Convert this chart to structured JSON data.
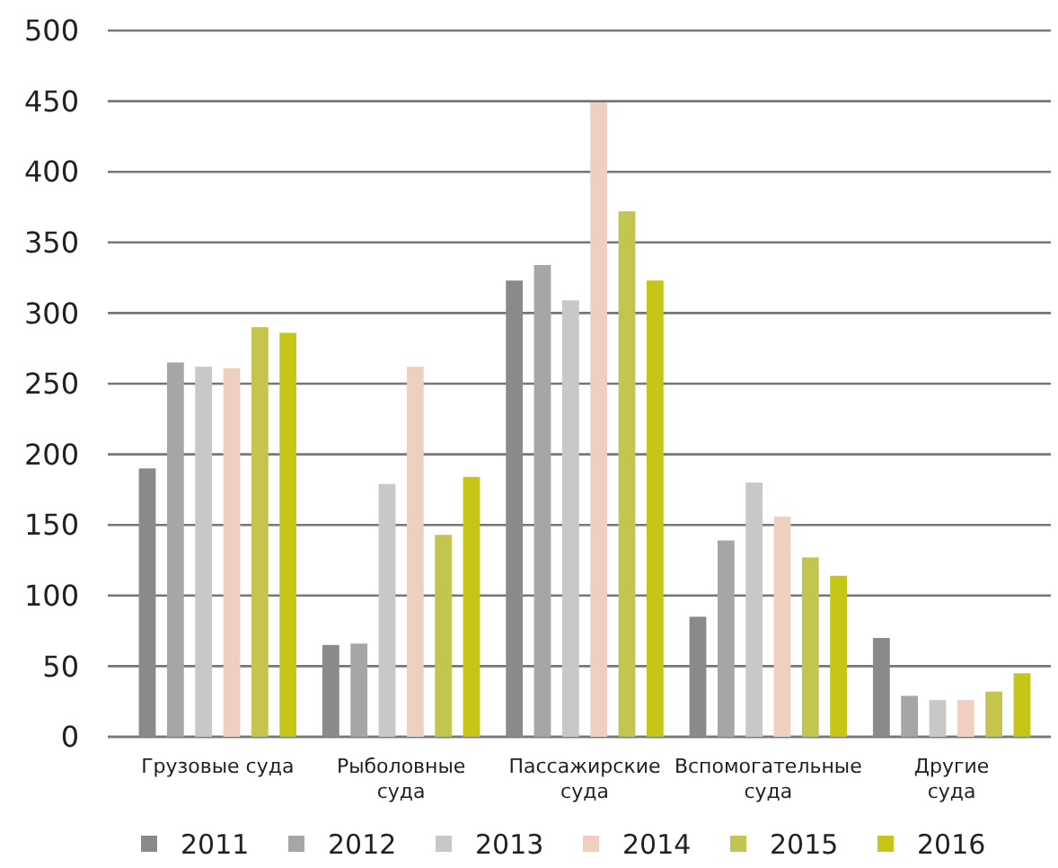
{
  "chart_data": {
    "type": "bar",
    "categories": [
      "Грузовые суда",
      "Рыболовные\nсуда",
      "Пассажирские\nсуда",
      "Вспомогательные\nсуда",
      "Другие\nсуда"
    ],
    "series": [
      {
        "name": "2011",
        "color": "#8a8a8a",
        "values": [
          190,
          65,
          323,
          85,
          70
        ]
      },
      {
        "name": "2012",
        "color": "#a6a6a6",
        "values": [
          265,
          66,
          334,
          139,
          29
        ]
      },
      {
        "name": "2013",
        "color": "#c8c8c8",
        "values": [
          262,
          179,
          309,
          180,
          26
        ]
      },
      {
        "name": "2014",
        "color": "#efcfbf",
        "values": [
          261,
          262,
          449,
          156,
          26
        ]
      },
      {
        "name": "2015",
        "color": "#c3c550",
        "values": [
          290,
          143,
          372,
          127,
          32
        ]
      },
      {
        "name": "2016",
        "color": "#c6c619",
        "values": [
          286,
          184,
          323,
          114,
          45
        ]
      }
    ],
    "ylim": [
      0,
      500
    ],
    "yticks": [
      0,
      50,
      100,
      150,
      200,
      250,
      300,
      350,
      400,
      450,
      500
    ],
    "grid": "y",
    "legend": "bottom"
  }
}
